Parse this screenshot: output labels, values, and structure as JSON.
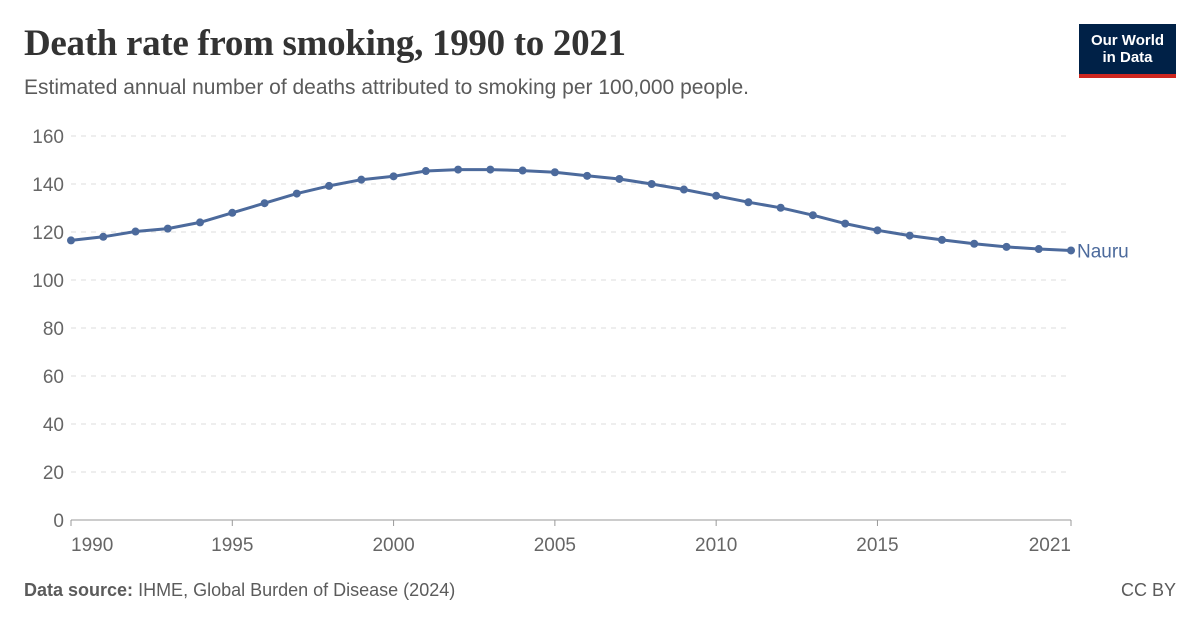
{
  "header": {
    "title": "Death rate from smoking, 1990 to 2021",
    "subtitle": "Estimated annual number of deaths attributed to smoking per 100,000 people."
  },
  "logo": {
    "line1": "Our World",
    "line2": "in Data"
  },
  "footer": {
    "source_label": "Data source:",
    "source_text": "IHME, Global Burden of Disease (2024)",
    "license": "CC BY"
  },
  "colors": {
    "series": "#4c6a9c",
    "grid": "#dddddd",
    "axis": "#999999",
    "logo_bg": "#002147",
    "logo_accent": "#ce261e"
  },
  "chart_data": {
    "type": "line",
    "title": "Death rate from smoking, 1990 to 2021",
    "subtitle": "Estimated annual number of deaths attributed to smoking per 100,000 people.",
    "xlim": [
      1990,
      2021
    ],
    "ylim": [
      0,
      160
    ],
    "y_ticks": [
      0,
      20,
      40,
      60,
      80,
      100,
      120,
      140,
      160
    ],
    "x_tick_labels": [
      "1990",
      "1995",
      "2000",
      "2005",
      "2010",
      "2015",
      "2021"
    ],
    "x_ticks": [
      1990,
      1995,
      2000,
      2005,
      2010,
      2015,
      2021
    ],
    "grid": "horizontal dashed",
    "legend": "inline label at line end",
    "series": [
      {
        "name": "Nauru",
        "x": [
          1990,
          1991,
          1992,
          1993,
          1994,
          1995,
          1996,
          1997,
          1998,
          1999,
          2000,
          2001,
          2002,
          2003,
          2004,
          2005,
          2006,
          2007,
          2008,
          2009,
          2010,
          2011,
          2012,
          2013,
          2014,
          2015,
          2016,
          2017,
          2018,
          2019,
          2020,
          2021
        ],
        "values": [
          116.5,
          118.0,
          120.2,
          121.4,
          124.0,
          128.0,
          132.0,
          136.0,
          139.2,
          141.8,
          143.2,
          145.4,
          146.0,
          146.0,
          145.6,
          144.9,
          143.4,
          142.1,
          140.0,
          137.7,
          135.1,
          132.4,
          130.1,
          127.0,
          123.5,
          120.7,
          118.5,
          116.7,
          115.1,
          113.8,
          112.9,
          112.3
        ]
      }
    ]
  }
}
